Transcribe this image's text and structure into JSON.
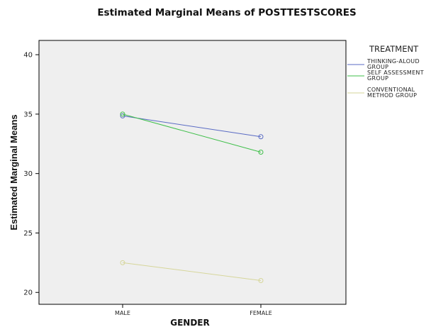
{
  "chart_data": {
    "type": "line",
    "title": "Estimated Marginal Means of POSTTESTSCORES",
    "xlabel": "GENDER",
    "ylabel": "Estimated Marginal Means",
    "categories": [
      "MALE",
      "FEMALE"
    ],
    "yticks": [
      20,
      25,
      30,
      35,
      40
    ],
    "ylim": [
      19,
      41.2
    ],
    "grid": false,
    "legend_position": "right",
    "legend_title": "TREATMENT",
    "series": [
      {
        "name": [
          "THINKING-ALOUD",
          "GROUP"
        ],
        "values": [
          34.85,
          33.1
        ],
        "color": "#5a6bc4"
      },
      {
        "name": [
          "SELF ASSESSMENT",
          "GROUP"
        ],
        "values": [
          35.0,
          31.8
        ],
        "color": "#3fbf4a"
      },
      {
        "name": [
          "CONVENTIONAL",
          "METHOD GROUP"
        ],
        "values": [
          22.5,
          21.0
        ],
        "color": "#d6d69a"
      }
    ]
  }
}
